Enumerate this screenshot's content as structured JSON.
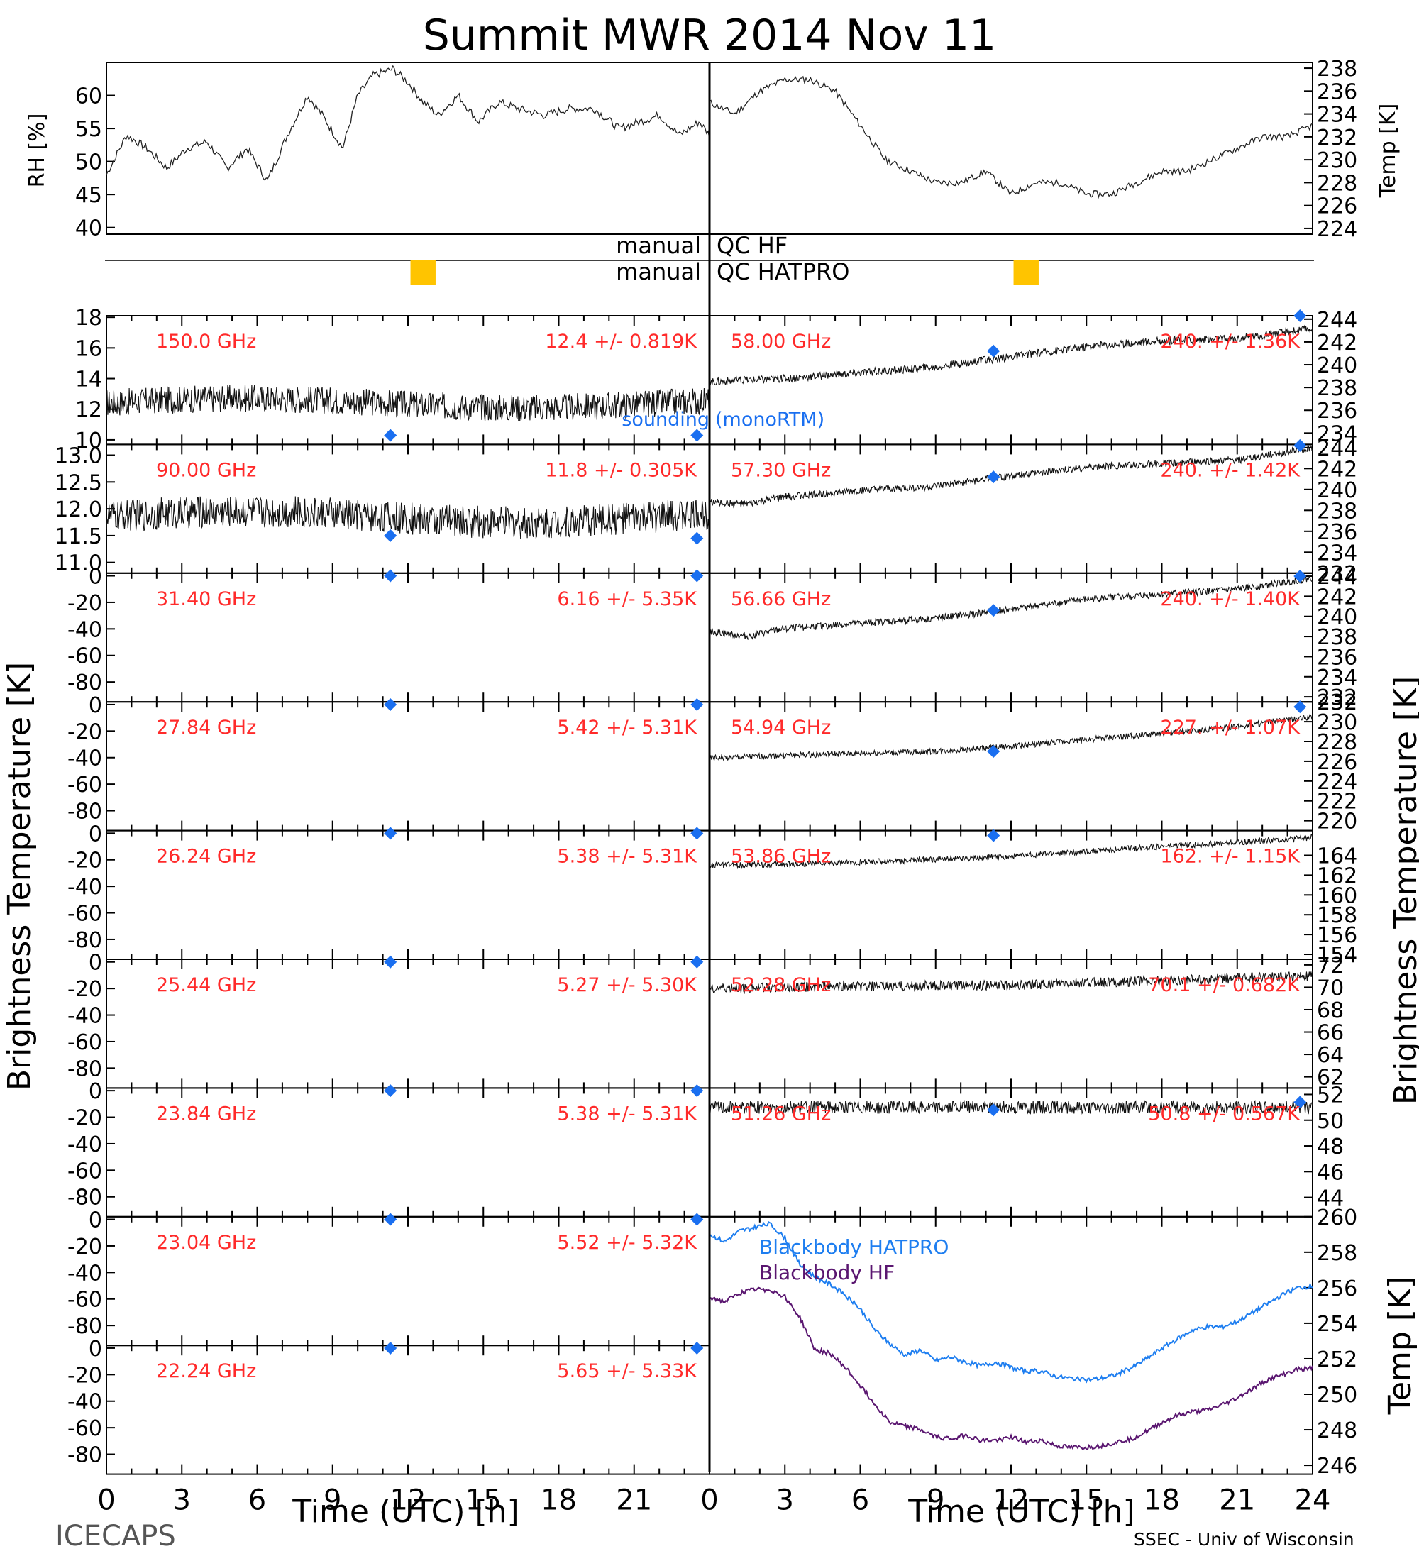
{
  "title": "Summit MWR 2014 Nov 11",
  "footer": {
    "left": "ICECAPS",
    "right": "SSEC - Univ of Wisconsin"
  },
  "colors": {
    "frame": "#000000",
    "channel_label": "#ff2a2a",
    "sounding": "#1a6ff0",
    "qc_bar": "#ffc400",
    "bb_hatpro": "#1e7ef0",
    "bb_hf": "#5a1670"
  },
  "chart_data": [
    {
      "type": "line",
      "id": "rh",
      "ylabel": "RH [%]",
      "ylim": [
        39,
        65
      ],
      "yticks": [
        40,
        45,
        50,
        55,
        60
      ],
      "xlim": [
        0,
        12
      ],
      "series": [
        {
          "x": [
            0,
            0.4,
            0.8,
            1.2,
            1.6,
            2,
            2.4,
            2.8,
            3.2,
            3.6,
            4,
            4.3,
            4.7,
            5,
            5.3,
            5.7,
            6,
            6.3,
            6.6,
            7,
            7.4,
            7.8,
            8.2,
            8.7,
            9.2,
            9.7,
            10.2,
            10.6,
            11,
            11.4,
            11.8,
            12
          ],
          "y": [
            48,
            54,
            52,
            49,
            52,
            53,
            49,
            52,
            47,
            54,
            60,
            57,
            52,
            60,
            63,
            64,
            62,
            59,
            57,
            60,
            56,
            59,
            58,
            57,
            58,
            58,
            55,
            56,
            57,
            54,
            56,
            54
          ]
        }
      ]
    },
    {
      "type": "line",
      "id": "temp_top",
      "ylabel": "Temp [K]",
      "ylim": [
        223.5,
        238.5
      ],
      "yticks": [
        224,
        226,
        228,
        230,
        232,
        234,
        236,
        238
      ],
      "xlim": [
        12,
        24
      ],
      "series": [
        {
          "x": [
            12,
            12.5,
            13,
            13.5,
            14,
            14.5,
            15,
            15.5,
            16,
            16.5,
            17,
            17.5,
            18,
            18.5,
            19,
            19.5,
            20,
            20.5,
            21,
            21.5,
            22,
            22.5,
            23,
            23.5,
            24
          ],
          "y": [
            235,
            234,
            236,
            237,
            237,
            236,
            233,
            230,
            229,
            228,
            228,
            229,
            227,
            228,
            228,
            227,
            227,
            228,
            229,
            229,
            230,
            231,
            232,
            232,
            233
          ]
        }
      ]
    },
    {
      "type": "scatter",
      "id": "ch150",
      "label": "150.0 GHz",
      "stat": "12.4 +/- 0.819K",
      "ylim": [
        9.7,
        18.1
      ],
      "yticks": [
        10,
        12,
        14,
        16,
        18
      ],
      "center": 12.4,
      "amp": 0.9,
      "sounding": [
        [
          11.3,
          10.3
        ],
        [
          23.5,
          10.3
        ]
      ]
    },
    {
      "type": "scatter",
      "id": "ch90",
      "label": "90.00 GHz",
      "stat": "11.8 +/- 0.305K",
      "ylim": [
        10.8,
        13.2
      ],
      "yticks": [
        11.0,
        11.5,
        12.0,
        12.5,
        13.0
      ],
      "center": 11.85,
      "amp": 0.3,
      "sounding": [
        [
          11.3,
          11.5
        ],
        [
          23.5,
          11.45
        ]
      ]
    },
    {
      "type": "scatter",
      "id": "ch31",
      "label": "31.40 GHz",
      "stat": "6.16 +/- 5.35K",
      "ylim": [
        -95,
        2
      ],
      "yticks": [
        0,
        -20,
        -40,
        -60,
        -80
      ],
      "sounding": [
        [
          11.3,
          0
        ],
        [
          23.5,
          0
        ]
      ]
    },
    {
      "type": "scatter",
      "id": "ch27",
      "label": "27.84 GHz",
      "stat": "5.42 +/- 5.31K",
      "ylim": [
        -95,
        2
      ],
      "yticks": [
        0,
        -20,
        -40,
        -60,
        -80
      ],
      "sounding": [
        [
          11.3,
          0
        ],
        [
          23.5,
          0
        ]
      ]
    },
    {
      "type": "scatter",
      "id": "ch26",
      "label": "26.24 GHz",
      "stat": "5.38 +/- 5.31K",
      "ylim": [
        -95,
        2
      ],
      "yticks": [
        0,
        -20,
        -40,
        -60,
        -80
      ],
      "sounding": [
        [
          11.3,
          0
        ],
        [
          23.5,
          0
        ]
      ]
    },
    {
      "type": "scatter",
      "id": "ch25",
      "label": "25.44 GHz",
      "stat": "5.27 +/- 5.30K",
      "ylim": [
        -95,
        2
      ],
      "yticks": [
        0,
        -20,
        -40,
        -60,
        -80
      ],
      "sounding": [
        [
          11.3,
          0
        ],
        [
          23.5,
          0
        ]
      ]
    },
    {
      "type": "scatter",
      "id": "ch23a",
      "label": "23.84 GHz",
      "stat": "5.38 +/- 5.31K",
      "ylim": [
        -95,
        2
      ],
      "yticks": [
        0,
        -20,
        -40,
        -60,
        -80
      ],
      "sounding": [
        [
          11.3,
          0
        ],
        [
          23.5,
          0
        ]
      ]
    },
    {
      "type": "scatter",
      "id": "ch23b",
      "label": "23.04 GHz",
      "stat": "5.52 +/- 5.32K",
      "ylim": [
        -95,
        2
      ],
      "yticks": [
        0,
        -20,
        -40,
        -60,
        -80
      ],
      "sounding": [
        [
          11.3,
          0
        ],
        [
          23.5,
          0
        ]
      ]
    },
    {
      "type": "scatter",
      "id": "ch22",
      "label": "22.24 GHz",
      "stat": "5.65 +/- 5.33K",
      "ylim": [
        -95,
        2
      ],
      "yticks": [
        0,
        -20,
        -40,
        -60,
        -80
      ],
      "sounding": [
        [
          11.3,
          0
        ],
        [
          23.5,
          0
        ]
      ]
    },
    {
      "type": "scatter",
      "id": "ch58",
      "label": "58.00 GHz",
      "stat": "240. +/- 1.36K",
      "ylim": [
        233,
        244.3
      ],
      "yticks": [
        234,
        236,
        238,
        240,
        242,
        244
      ],
      "trend": {
        "x": [
          0,
          3,
          6,
          9,
          12,
          15,
          18,
          21,
          24
        ],
        "y": [
          238.5,
          238.8,
          239.3,
          239.8,
          240.7,
          241.6,
          242.1,
          242.3,
          243.2
        ]
      },
      "amp": 0.35,
      "sounding": [
        [
          11.3,
          241.2
        ],
        [
          23.5,
          244.5
        ]
      ]
    },
    {
      "type": "scatter",
      "id": "ch57",
      "label": "57.30 GHz",
      "stat": "240. +/- 1.42K",
      "ylim": [
        232,
        244.3
      ],
      "yticks": [
        232,
        234,
        236,
        238,
        240,
        242,
        244
      ],
      "trend": {
        "x": [
          0,
          1.5,
          3,
          6,
          9,
          12,
          15,
          18,
          21,
          24
        ],
        "y": [
          238.8,
          238.6,
          239.3,
          239.9,
          240.3,
          241.3,
          242.1,
          242.5,
          242.8,
          244.0
        ]
      },
      "amp": 0.35,
      "sounding": [
        [
          11.3,
          241.2
        ],
        [
          23.5,
          244.2
        ]
      ]
    },
    {
      "type": "scatter",
      "id": "ch56",
      "label": "56.66 GHz",
      "stat": "240. +/- 1.40K",
      "ylim": [
        231.5,
        244.3
      ],
      "yticks": [
        232,
        234,
        236,
        238,
        240,
        242,
        244
      ],
      "trend": {
        "x": [
          0,
          1.5,
          3,
          6,
          9,
          12,
          15,
          18,
          21,
          24
        ],
        "y": [
          238.5,
          238.0,
          238.8,
          239.3,
          239.8,
          240.7,
          241.7,
          242.2,
          242.7,
          243.8
        ]
      },
      "amp": 0.35,
      "sounding": [
        [
          11.3,
          240.6
        ],
        [
          23.5,
          244.0
        ]
      ]
    },
    {
      "type": "scatter",
      "id": "ch54",
      "label": "54.94 GHz",
      "stat": "227. +/- 1.07K",
      "ylim": [
        219,
        232
      ],
      "yticks": [
        220,
        222,
        224,
        226,
        228,
        230,
        232
      ],
      "trend": {
        "x": [
          0,
          3,
          6,
          9,
          12,
          15,
          18,
          21,
          24
        ],
        "y": [
          226.3,
          226.6,
          226.8,
          227.0,
          227.5,
          228.2,
          228.8,
          229.5,
          230.5
        ]
      },
      "amp": 0.3,
      "sounding": [
        [
          11.3,
          227.0
        ],
        [
          23.5,
          231.5
        ]
      ]
    },
    {
      "type": "scatter",
      "id": "ch53",
      "label": "53.86 GHz",
      "stat": "162. +/- 1.15K",
      "ylim": [
        153.5,
        166.5
      ],
      "yticks": [
        154,
        156,
        158,
        160,
        162,
        164
      ],
      "trend": {
        "x": [
          0,
          3,
          6,
          9,
          12,
          15,
          18,
          21,
          24
        ],
        "y": [
          163.0,
          163.1,
          163.3,
          163.6,
          163.9,
          164.4,
          164.9,
          165.3,
          165.8
        ]
      },
      "amp": 0.3,
      "sounding": [
        [
          11.3,
          166.0
        ]
      ]
    },
    {
      "type": "scatter",
      "id": "ch52",
      "label": "52.28 GHz",
      "stat": "70.1 +/- 0.682K",
      "ylim": [
        61,
        72.5
      ],
      "yticks": [
        62,
        64,
        66,
        68,
        70,
        72
      ],
      "trend": {
        "x": [
          0,
          6,
          12,
          18,
          24
        ],
        "y": [
          69.9,
          70.1,
          70.2,
          70.6,
          71.0
        ]
      },
      "amp": 0.45
    },
    {
      "type": "scatter",
      "id": "ch51",
      "label": "51.26 GHz",
      "stat": "50.8 +/- 0.567K",
      "ylim": [
        42.5,
        52.5
      ],
      "yticks": [
        44,
        46,
        48,
        50,
        52
      ],
      "trend": {
        "x": [
          0,
          6,
          12,
          18,
          24
        ],
        "y": [
          51.0,
          51.0,
          51.0,
          51.0,
          51.0
        ]
      },
      "amp": 0.5,
      "sounding": [
        [
          11.3,
          50.8
        ],
        [
          23.5,
          51.4
        ]
      ]
    },
    {
      "type": "line",
      "id": "blackbody",
      "ylabel": "Temp [K]",
      "ylim": [
        245.5,
        260
      ],
      "yticks": [
        246,
        248,
        250,
        252,
        254,
        256,
        258,
        260
      ],
      "xlim": [
        0,
        24
      ],
      "series": [
        {
          "name": "Blackbody HATPRO",
          "x": [
            0,
            0.6,
            1.2,
            1.8,
            2.4,
            3,
            3.6,
            4.2,
            4.8,
            5.4,
            6,
            6.6,
            7.2,
            7.8,
            8.4,
            9,
            9.6,
            10.2,
            10.8,
            11.4,
            12,
            12.6,
            13.2,
            13.8,
            14.4,
            15,
            15.6,
            16.2,
            16.8,
            17.4,
            18,
            18.6,
            19.2,
            19.8,
            20.4,
            21,
            21.6,
            22.2,
            22.8,
            23.4,
            24
          ],
          "y": [
            259,
            258.6,
            259.2,
            259.4,
            259.6,
            258.8,
            257.3,
            256.6,
            256.2,
            255.6,
            254.8,
            253.6,
            252.8,
            252.2,
            252.5,
            251.9,
            252.1,
            251.8,
            251.6,
            251.8,
            251.5,
            251.3,
            251.3,
            251.0,
            250.9,
            250.8,
            250.9,
            251.1,
            251.5,
            252.0,
            252.6,
            253.1,
            253.6,
            253.8,
            253.8,
            254.1,
            254.6,
            255.1,
            255.6,
            256.0,
            256.1
          ]
        },
        {
          "name": "Blackbody HF",
          "x": [
            0,
            0.6,
            1.2,
            1.8,
            2.4,
            3,
            3.6,
            4.2,
            4.8,
            5.4,
            6,
            6.6,
            7.2,
            7.8,
            8.4,
            9,
            9.6,
            10.2,
            10.8,
            11.4,
            12,
            12.6,
            13.2,
            13.8,
            14.4,
            15,
            15.6,
            16.2,
            16.8,
            17.4,
            18,
            18.6,
            19.2,
            19.8,
            20.4,
            21,
            21.6,
            22.2,
            22.8,
            23.4,
            24
          ],
          "y": [
            255.5,
            255.2,
            255.7,
            255.9,
            255.9,
            255.5,
            254.3,
            252.5,
            252.3,
            251.5,
            250.5,
            249.4,
            248.4,
            248.2,
            248.0,
            247.6,
            247.5,
            247.7,
            247.4,
            247.4,
            247.6,
            247.3,
            247.4,
            247.1,
            247.0,
            247.0,
            247.1,
            247.3,
            247.5,
            247.9,
            248.4,
            248.8,
            249.0,
            249.1,
            249.4,
            249.8,
            250.3,
            250.8,
            251.1,
            251.4,
            251.5
          ]
        }
      ]
    }
  ],
  "labels": {
    "qc_hf_left": "manual",
    "qc_hf_right": "QC HF",
    "qc_hatpro_left": "manual",
    "qc_hatpro_right": "QC HATPRO",
    "qc_bars": [
      {
        "panel": "left",
        "start": 12.1,
        "end": 13.1
      },
      {
        "panel": "right",
        "start": 12.1,
        "end": 13.1
      }
    ],
    "sounding_legend_a": "sounding",
    "sounding_legend_b": "(monoRTM)",
    "left_axis_title": "Brightness Temperature [K]",
    "right_axis_title": "Brightness Temperature [K]",
    "bb_temp_label": "Temp [K]",
    "x_title_left": "Time (UTC) [h]",
    "x_title_right": "Time (UTC) [h]",
    "x_left_ticks": [
      "0",
      "3",
      "6",
      "9",
      "12",
      "15",
      "18",
      "21"
    ],
    "x_right_ticks": [
      "0",
      "3",
      "6",
      "9",
      "12",
      "15",
      "18",
      "21",
      "24"
    ],
    "right_ch_labels": [
      "58.00 GHz",
      "57.30 GHz",
      "56.66 GHz",
      "54.94 GHz",
      "53.86 GHz",
      "52.28 GHz",
      "51.26 GHz"
    ],
    "right_ch_stats": [
      "240. +/- 1.36K",
      "240. +/- 1.42K",
      "240. +/- 1.40K",
      "227. +/- 1.07K",
      "162. +/- 1.15K",
      "70.1 +/- 0.682K",
      "50.8 +/- 0.567K"
    ]
  }
}
